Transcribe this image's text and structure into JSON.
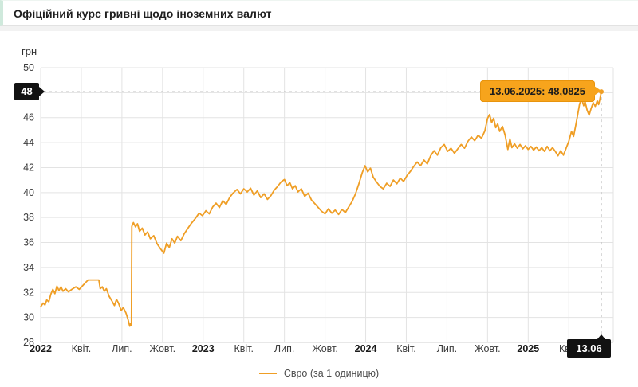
{
  "window": {
    "title": "Офіційний курс гривні щодо іноземних валют"
  },
  "chart_data": {
    "type": "line",
    "title": "Офіційний курс гривні щодо іноземних валют",
    "ylabel": "грн",
    "xlabel": "",
    "y_range": [
      28,
      50
    ],
    "y_tick_step": 2,
    "x_unit": "months since Jan 2022",
    "x_range": [
      0,
      41.4
    ],
    "grid": true,
    "legend": {
      "position": "bottom-center",
      "label": "Євро (за 1 одиницю)"
    },
    "colors": {
      "line": "#EF9E25",
      "tooltip_bg": "#F7A41C",
      "badge_bg": "#121212",
      "grid": "#e3e3e3",
      "dashed": "#b0b0b0",
      "tick_text": "#3c3c3c",
      "year_text": "#1a1a1a"
    },
    "x_ticks": [
      {
        "m": 0,
        "label": "2022",
        "bold": true
      },
      {
        "m": 3,
        "label": "Квіт.",
        "bold": false
      },
      {
        "m": 6,
        "label": "Лип.",
        "bold": false
      },
      {
        "m": 9,
        "label": "Жовт.",
        "bold": false
      },
      {
        "m": 12,
        "label": "2023",
        "bold": true
      },
      {
        "m": 15,
        "label": "Квіт.",
        "bold": false
      },
      {
        "m": 18,
        "label": "Лип.",
        "bold": false
      },
      {
        "m": 21,
        "label": "Жовт.",
        "bold": false
      },
      {
        "m": 24,
        "label": "2024",
        "bold": true
      },
      {
        "m": 27,
        "label": "Квіт.",
        "bold": false
      },
      {
        "m": 30,
        "label": "Лип.",
        "bold": false
      },
      {
        "m": 33,
        "label": "Жовт.",
        "bold": false
      },
      {
        "m": 36,
        "label": "2025",
        "bold": true
      },
      {
        "m": 39,
        "label": "Квіт.",
        "bold": false
      }
    ],
    "series": [
      {
        "name": "Євро (за 1 одиницю)",
        "points": [
          [
            0,
            30.85
          ],
          [
            0.18,
            31.15
          ],
          [
            0.32,
            31.0
          ],
          [
            0.45,
            31.4
          ],
          [
            0.6,
            31.25
          ],
          [
            0.75,
            31.85
          ],
          [
            0.9,
            32.25
          ],
          [
            1.05,
            31.9
          ],
          [
            1.2,
            32.5
          ],
          [
            1.35,
            32.15
          ],
          [
            1.5,
            32.45
          ],
          [
            1.65,
            32.1
          ],
          [
            1.85,
            32.3
          ],
          [
            2.05,
            32.05
          ],
          [
            2.3,
            32.25
          ],
          [
            2.6,
            32.45
          ],
          [
            2.85,
            32.25
          ],
          [
            3.15,
            32.6
          ],
          [
            3.5,
            33.0
          ],
          [
            4.3,
            33.0
          ],
          [
            4.4,
            32.3
          ],
          [
            4.55,
            32.45
          ],
          [
            4.7,
            32.1
          ],
          [
            4.85,
            32.3
          ],
          [
            5.05,
            31.7
          ],
          [
            5.25,
            31.35
          ],
          [
            5.45,
            30.95
          ],
          [
            5.6,
            31.45
          ],
          [
            5.75,
            31.15
          ],
          [
            5.95,
            30.55
          ],
          [
            6.1,
            30.8
          ],
          [
            6.3,
            30.35
          ],
          [
            6.45,
            29.85
          ],
          [
            6.58,
            29.3
          ],
          [
            6.65,
            29.5
          ],
          [
            6.7,
            29.35
          ],
          [
            6.73,
            37.3
          ],
          [
            6.85,
            37.6
          ],
          [
            7.0,
            37.25
          ],
          [
            7.15,
            37.5
          ],
          [
            7.3,
            36.9
          ],
          [
            7.5,
            37.15
          ],
          [
            7.7,
            36.6
          ],
          [
            7.9,
            36.85
          ],
          [
            8.1,
            36.3
          ],
          [
            8.35,
            36.55
          ],
          [
            8.6,
            35.9
          ],
          [
            8.85,
            35.5
          ],
          [
            9.1,
            35.15
          ],
          [
            9.3,
            35.95
          ],
          [
            9.5,
            35.6
          ],
          [
            9.7,
            36.3
          ],
          [
            9.9,
            35.95
          ],
          [
            10.1,
            36.5
          ],
          [
            10.35,
            36.15
          ],
          [
            10.6,
            36.7
          ],
          [
            10.85,
            37.1
          ],
          [
            11.1,
            37.5
          ],
          [
            11.4,
            37.9
          ],
          [
            11.7,
            38.35
          ],
          [
            11.95,
            38.15
          ],
          [
            12.2,
            38.55
          ],
          [
            12.45,
            38.3
          ],
          [
            12.7,
            38.85
          ],
          [
            12.95,
            39.15
          ],
          [
            13.2,
            38.8
          ],
          [
            13.45,
            39.35
          ],
          [
            13.7,
            39.05
          ],
          [
            13.95,
            39.6
          ],
          [
            14.2,
            39.95
          ],
          [
            14.5,
            40.25
          ],
          [
            14.75,
            39.9
          ],
          [
            15.0,
            40.3
          ],
          [
            15.25,
            40.05
          ],
          [
            15.5,
            40.35
          ],
          [
            15.75,
            39.8
          ],
          [
            16.0,
            40.15
          ],
          [
            16.25,
            39.6
          ],
          [
            16.5,
            39.9
          ],
          [
            16.75,
            39.45
          ],
          [
            17.0,
            39.75
          ],
          [
            17.25,
            40.2
          ],
          [
            17.5,
            40.5
          ],
          [
            17.75,
            40.85
          ],
          [
            18.0,
            41.05
          ],
          [
            18.2,
            40.55
          ],
          [
            18.4,
            40.8
          ],
          [
            18.6,
            40.3
          ],
          [
            18.8,
            40.55
          ],
          [
            19.0,
            40.05
          ],
          [
            19.25,
            40.3
          ],
          [
            19.5,
            39.7
          ],
          [
            19.75,
            39.95
          ],
          [
            20.0,
            39.4
          ],
          [
            20.25,
            39.1
          ],
          [
            20.5,
            38.8
          ],
          [
            20.75,
            38.5
          ],
          [
            21.0,
            38.3
          ],
          [
            21.25,
            38.7
          ],
          [
            21.5,
            38.35
          ],
          [
            21.75,
            38.6
          ],
          [
            22.0,
            38.25
          ],
          [
            22.25,
            38.65
          ],
          [
            22.5,
            38.4
          ],
          [
            22.75,
            38.85
          ],
          [
            23.0,
            39.3
          ],
          [
            23.25,
            39.9
          ],
          [
            23.5,
            40.7
          ],
          [
            23.75,
            41.6
          ],
          [
            23.95,
            42.15
          ],
          [
            24.15,
            41.65
          ],
          [
            24.35,
            41.95
          ],
          [
            24.55,
            41.25
          ],
          [
            24.8,
            40.85
          ],
          [
            25.05,
            40.5
          ],
          [
            25.3,
            40.3
          ],
          [
            25.55,
            40.75
          ],
          [
            25.8,
            40.5
          ],
          [
            26.05,
            41.0
          ],
          [
            26.3,
            40.7
          ],
          [
            26.55,
            41.15
          ],
          [
            26.8,
            40.9
          ],
          [
            27.05,
            41.35
          ],
          [
            27.3,
            41.7
          ],
          [
            27.55,
            42.1
          ],
          [
            27.8,
            42.45
          ],
          [
            28.05,
            42.15
          ],
          [
            28.3,
            42.6
          ],
          [
            28.55,
            42.3
          ],
          [
            28.8,
            42.95
          ],
          [
            29.05,
            43.35
          ],
          [
            29.3,
            43.0
          ],
          [
            29.55,
            43.6
          ],
          [
            29.8,
            43.85
          ],
          [
            30.05,
            43.3
          ],
          [
            30.3,
            43.55
          ],
          [
            30.55,
            43.15
          ],
          [
            30.8,
            43.5
          ],
          [
            31.05,
            43.85
          ],
          [
            31.3,
            43.55
          ],
          [
            31.55,
            44.1
          ],
          [
            31.8,
            44.45
          ],
          [
            32.05,
            44.15
          ],
          [
            32.3,
            44.6
          ],
          [
            32.55,
            44.35
          ],
          [
            32.8,
            44.95
          ],
          [
            33.0,
            45.95
          ],
          [
            33.15,
            46.25
          ],
          [
            33.3,
            45.6
          ],
          [
            33.45,
            45.95
          ],
          [
            33.6,
            45.2
          ],
          [
            33.75,
            45.5
          ],
          [
            33.9,
            44.9
          ],
          [
            34.1,
            45.3
          ],
          [
            34.3,
            44.6
          ],
          [
            34.5,
            43.45
          ],
          [
            34.65,
            44.3
          ],
          [
            34.8,
            43.6
          ],
          [
            35.0,
            43.9
          ],
          [
            35.2,
            43.55
          ],
          [
            35.4,
            43.85
          ],
          [
            35.6,
            43.5
          ],
          [
            35.8,
            43.75
          ],
          [
            36.0,
            43.45
          ],
          [
            36.2,
            43.7
          ],
          [
            36.4,
            43.4
          ],
          [
            36.6,
            43.65
          ],
          [
            36.8,
            43.35
          ],
          [
            37.0,
            43.6
          ],
          [
            37.2,
            43.3
          ],
          [
            37.4,
            43.7
          ],
          [
            37.6,
            43.35
          ],
          [
            37.8,
            43.6
          ],
          [
            38.0,
            43.3
          ],
          [
            38.2,
            42.95
          ],
          [
            38.4,
            43.35
          ],
          [
            38.6,
            43.0
          ],
          [
            38.8,
            43.55
          ],
          [
            39.0,
            44.1
          ],
          [
            39.2,
            44.9
          ],
          [
            39.35,
            44.5
          ],
          [
            39.5,
            45.3
          ],
          [
            39.65,
            46.2
          ],
          [
            39.8,
            47.1
          ],
          [
            39.95,
            47.5
          ],
          [
            40.1,
            46.95
          ],
          [
            40.2,
            47.3
          ],
          [
            40.35,
            46.6
          ],
          [
            40.5,
            46.2
          ],
          [
            40.65,
            46.75
          ],
          [
            40.8,
            47.2
          ],
          [
            40.95,
            46.9
          ],
          [
            41.1,
            47.35
          ],
          [
            41.2,
            47.05
          ],
          [
            41.3,
            47.5
          ],
          [
            41.4,
            48.0825
          ]
        ]
      }
    ],
    "annotations": {
      "tooltip_text": "13.06.2025: 48,0825",
      "last_point": {
        "date": "13.06.2025",
        "value": 48.0825
      },
      "y_axis_badge": "48",
      "x_axis_badge": "13.06"
    }
  }
}
